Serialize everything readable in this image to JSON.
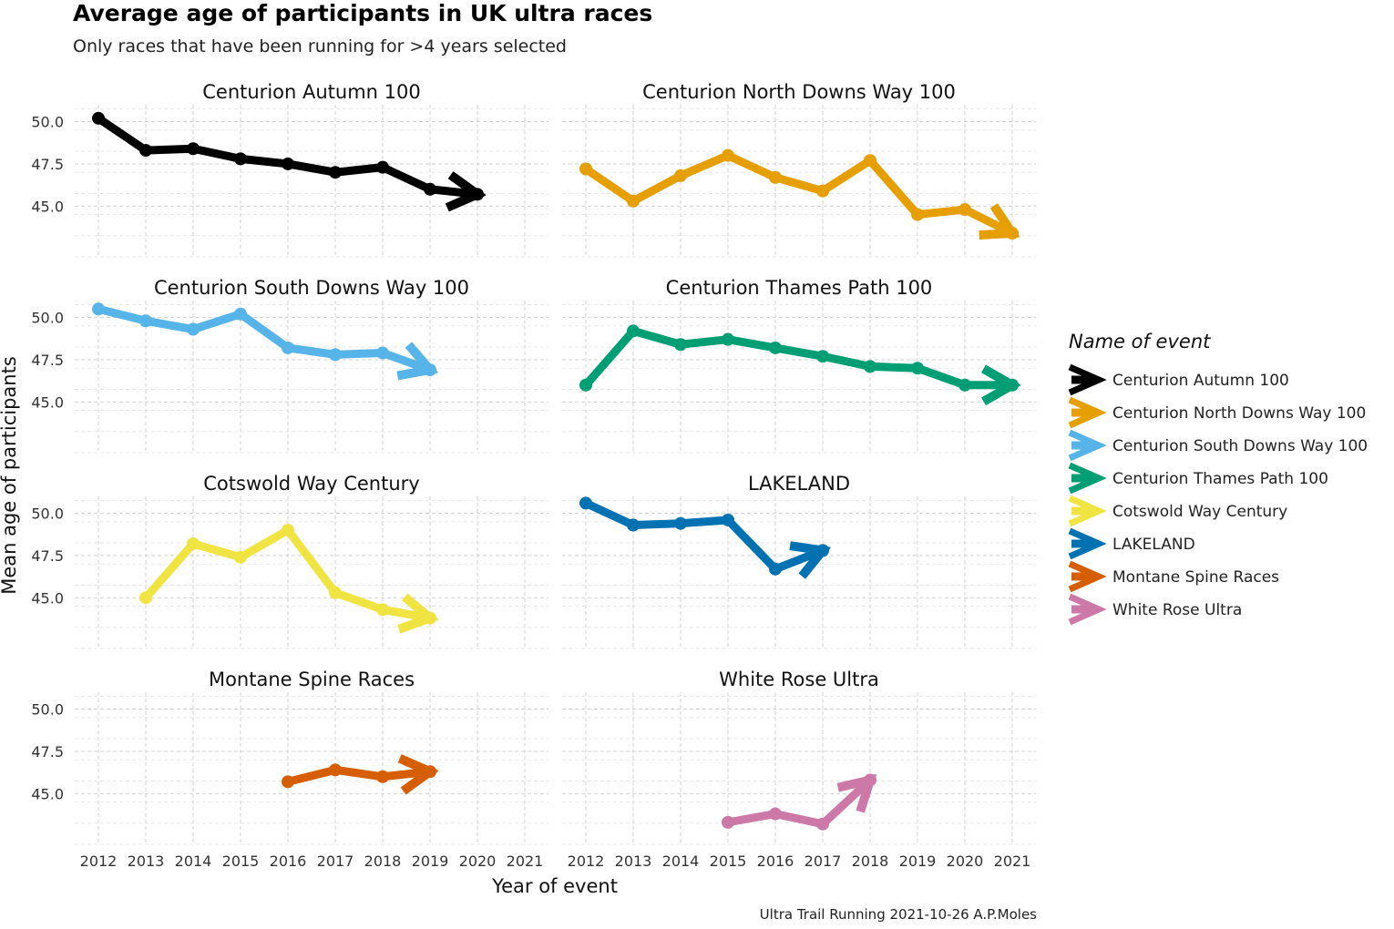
{
  "title": "Average age of participants in UK ultra races",
  "subtitle": "Only races that have been running for >4 years selected",
  "caption": "Ultra Trail Running 2021-10-26 A.P.Moles",
  "chart_data": {
    "type": "line",
    "facets": true,
    "xlabel": "Year of event",
    "ylabel": "Mean age of participants",
    "x_ticks": [
      2012,
      2013,
      2014,
      2015,
      2016,
      2017,
      2018,
      2019,
      2020,
      2021
    ],
    "y_ticks": [
      45.0,
      47.5,
      50.0
    ],
    "y_tick_labels": [
      "45.0",
      "47.5",
      "50.0"
    ],
    "xlim": [
      2011.5,
      2021.5
    ],
    "ylim": [
      42.0,
      51.0
    ],
    "grid": true,
    "legend_title": "Name of event",
    "legend_position": "right",
    "series": [
      {
        "name": "Centurion Autumn 100",
        "color": "#000000",
        "x": [
          2012,
          2013,
          2014,
          2015,
          2016,
          2017,
          2018,
          2019,
          2020
        ],
        "y": [
          50.2,
          48.3,
          48.4,
          47.8,
          47.5,
          47.0,
          47.3,
          46.0,
          45.7
        ]
      },
      {
        "name": "Centurion North Downs Way 100",
        "color": "#E69F00",
        "x": [
          2012,
          2013,
          2014,
          2015,
          2016,
          2017,
          2018,
          2019,
          2020,
          2021
        ],
        "y": [
          47.2,
          45.3,
          46.8,
          48.0,
          46.7,
          45.9,
          47.7,
          44.5,
          44.8,
          43.4
        ]
      },
      {
        "name": "Centurion South Downs Way 100",
        "color": "#56B4E9",
        "x": [
          2012,
          2013,
          2014,
          2015,
          2016,
          2017,
          2018,
          2019
        ],
        "y": [
          50.5,
          49.8,
          49.3,
          50.2,
          48.2,
          47.8,
          47.9,
          46.9
        ]
      },
      {
        "name": "Centurion Thames Path 100",
        "color": "#009E73",
        "x": [
          2012,
          2013,
          2014,
          2015,
          2016,
          2017,
          2018,
          2019,
          2020,
          2021
        ],
        "y": [
          46.0,
          49.2,
          48.4,
          48.7,
          48.2,
          47.7,
          47.1,
          47.0,
          46.0,
          46.0
        ]
      },
      {
        "name": "Cotswold Way Century",
        "color": "#F0E442",
        "x": [
          2013,
          2014,
          2015,
          2016,
          2017,
          2018,
          2019
        ],
        "y": [
          45.0,
          48.2,
          47.4,
          49.0,
          45.3,
          44.3,
          43.8
        ]
      },
      {
        "name": "LAKELAND",
        "color": "#0072B2",
        "x": [
          2012,
          2013,
          2014,
          2015,
          2016,
          2017
        ],
        "y": [
          50.6,
          49.3,
          49.4,
          49.6,
          46.7,
          47.8
        ]
      },
      {
        "name": "Montane Spine Races",
        "color": "#D55E00",
        "x": [
          2016,
          2017,
          2018,
          2019
        ],
        "y": [
          45.7,
          46.4,
          46.0,
          46.3
        ]
      },
      {
        "name": "White Rose Ultra",
        "color": "#CC79A7",
        "x": [
          2015,
          2016,
          2017,
          2018
        ],
        "y": [
          43.3,
          43.8,
          43.2,
          45.8
        ]
      }
    ]
  }
}
